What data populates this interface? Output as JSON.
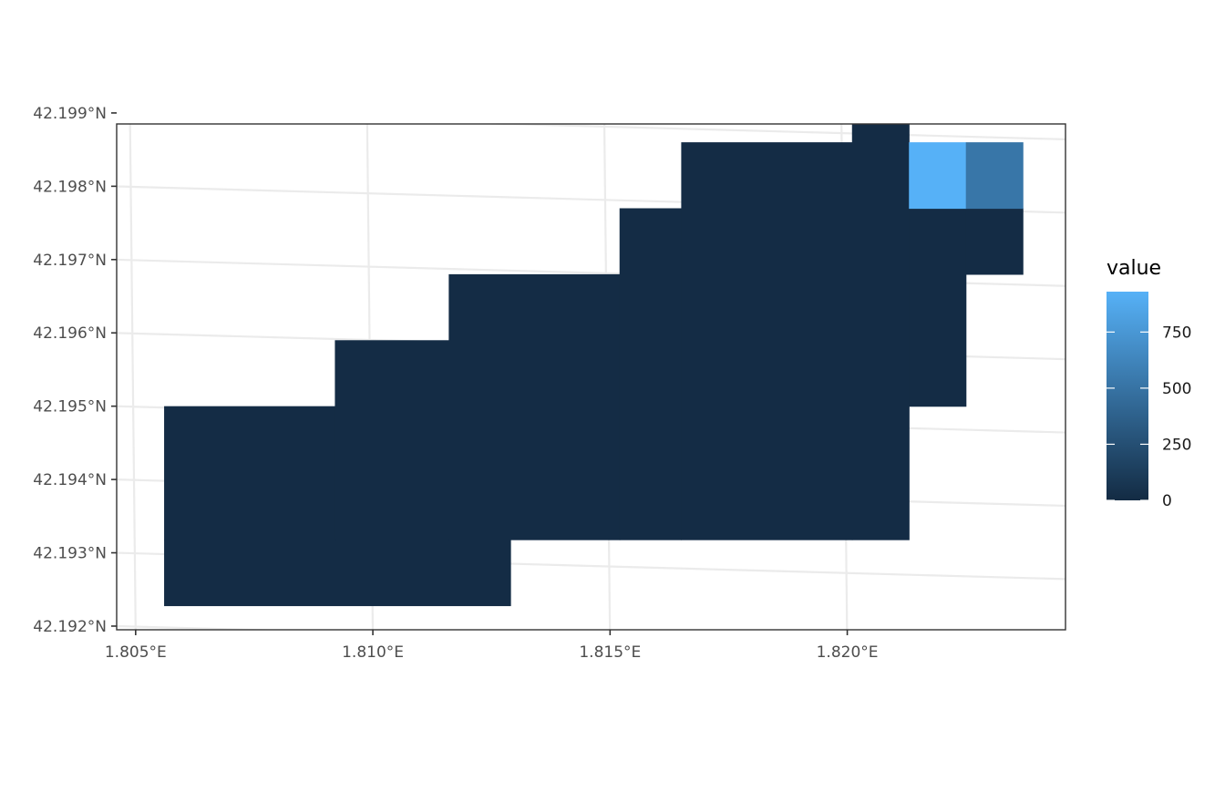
{
  "chart_data": {
    "type": "heatmap",
    "subtype": "raster-map",
    "title": "",
    "xlabel": "",
    "ylabel": "",
    "xlim": [
      1.8046,
      1.8246
    ],
    "ylim": [
      42.19195,
      42.19885
    ],
    "x_ticks": [
      {
        "value": 1.805,
        "label": "1.805°E"
      },
      {
        "value": 1.81,
        "label": "1.810°E"
      },
      {
        "value": 1.815,
        "label": "1.815°E"
      },
      {
        "value": 1.82,
        "label": "1.820°E"
      }
    ],
    "y_ticks": [
      {
        "value": 42.192,
        "label": "42.192°N"
      },
      {
        "value": 42.193,
        "label": "42.193°N"
      },
      {
        "value": 42.194,
        "label": "42.194°N"
      },
      {
        "value": 42.195,
        "label": "42.195°N"
      },
      {
        "value": 42.196,
        "label": "42.196°N"
      },
      {
        "value": 42.197,
        "label": "42.197°N"
      },
      {
        "value": 42.198,
        "label": "42.198°N"
      },
      {
        "value": 42.199,
        "label": "42.199°N"
      }
    ],
    "grid": true,
    "legend": {
      "title": "value",
      "position": "right",
      "min": 0,
      "max": 930,
      "breaks": [
        {
          "value": 0,
          "label": "0"
        },
        {
          "value": 250,
          "label": "250"
        },
        {
          "value": 500,
          "label": "500"
        },
        {
          "value": 750,
          "label": "750"
        }
      ],
      "low_color": "#132B43",
      "high_color": "#56B1F7"
    },
    "cells": [
      {
        "x": [
          1.8056,
          1.8129
        ],
        "y": [
          42.19228,
          42.19318
        ],
        "value": 10
      },
      {
        "x": [
          1.8056,
          1.8092
        ],
        "y": [
          42.19318,
          42.195
        ],
        "value": 10
      },
      {
        "x": [
          1.8092,
          1.8116
        ],
        "y": [
          42.19318,
          42.1959
        ],
        "value": 10
      },
      {
        "x": [
          1.8116,
          1.8152
        ],
        "y": [
          42.19318,
          42.1968
        ],
        "value": 10
      },
      {
        "x": [
          1.8152,
          1.8165
        ],
        "y": [
          42.19318,
          42.1977
        ],
        "value": 10
      },
      {
        "x": [
          1.8165,
          1.8201
        ],
        "y": [
          42.19318,
          42.1986
        ],
        "value": 10
      },
      {
        "x": [
          1.8201,
          1.8213
        ],
        "y": [
          42.19318,
          42.1995
        ],
        "value": 10
      },
      {
        "x": [
          1.8213,
          1.8225
        ],
        "y": [
          42.195,
          42.1977
        ],
        "value": 10
      },
      {
        "x": [
          1.8225,
          1.8237
        ],
        "y": [
          42.1968,
          42.1977
        ],
        "value": 10
      },
      {
        "x": [
          1.8213,
          1.8225
        ],
        "y": [
          42.1977,
          42.1986
        ],
        "value": 930
      },
      {
        "x": [
          1.8225,
          1.8237
        ],
        "y": [
          42.1977,
          42.1986
        ],
        "value": 520
      }
    ]
  }
}
